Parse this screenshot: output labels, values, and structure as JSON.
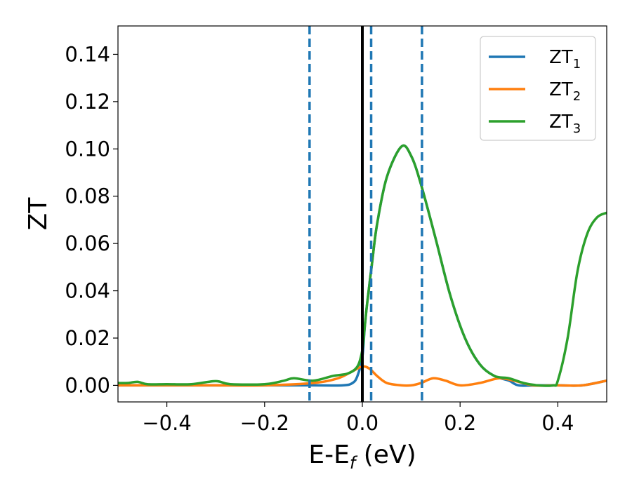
{
  "chart_data": {
    "type": "line",
    "xlabel": "E-E",
    "xlabel_sub": "f",
    "xlabel_unit": " (eV)",
    "ylabel": "ZT",
    "xlim": [
      -0.5,
      0.5
    ],
    "ylim": [
      -0.007,
      0.152
    ],
    "x_ticks": [
      -0.4,
      -0.2,
      0.0,
      0.2,
      0.4
    ],
    "x_tick_labels": [
      "−0.4",
      "−0.2",
      "0.0",
      "0.2",
      "0.4"
    ],
    "y_ticks": [
      0.0,
      0.02,
      0.04,
      0.06,
      0.08,
      0.1,
      0.12,
      0.14
    ],
    "y_tick_labels": [
      "0.00",
      "0.02",
      "0.04",
      "0.06",
      "0.08",
      "0.10",
      "0.12",
      "0.14"
    ],
    "grid": false,
    "legend_position": "top-right",
    "vertical_lines": [
      {
        "x": 0.0,
        "color": "#000000",
        "style": "solid"
      },
      {
        "x": -0.108,
        "color": "#1f77b4",
        "style": "dashed"
      },
      {
        "x": 0.018,
        "color": "#1f77b4",
        "style": "dashed"
      },
      {
        "x": 0.122,
        "color": "#1f77b4",
        "style": "dashed"
      }
    ],
    "series": [
      {
        "name": "ZT",
        "name_sub": "1",
        "color": "#1f77b4",
        "points": [
          [
            -0.5,
            0.0
          ],
          [
            -0.3,
            0.0
          ],
          [
            -0.1,
            0.0
          ],
          [
            -0.04,
            0.0
          ],
          [
            -0.02,
            0.001
          ],
          [
            -0.01,
            0.004
          ],
          [
            0.0,
            0.012
          ],
          [
            0.005,
            0.025
          ],
          [
            0.01,
            0.035
          ],
          [
            0.02,
            0.052
          ],
          [
            0.03,
            0.068
          ],
          [
            0.05,
            0.088
          ],
          [
            0.08,
            0.101
          ],
          [
            0.1,
            0.097
          ],
          [
            0.12,
            0.085
          ],
          [
            0.15,
            0.062
          ],
          [
            0.18,
            0.038
          ],
          [
            0.21,
            0.02
          ],
          [
            0.24,
            0.009
          ],
          [
            0.27,
            0.004
          ],
          [
            0.3,
            0.002
          ],
          [
            0.32,
            0.0
          ],
          [
            0.36,
            0.0
          ],
          [
            0.4,
            0.0
          ],
          [
            0.45,
            0.0
          ],
          [
            0.5,
            0.002
          ]
        ]
      },
      {
        "name": "ZT",
        "name_sub": "2",
        "color": "#ff7f0e",
        "points": [
          [
            -0.5,
            0.0
          ],
          [
            -0.4,
            0.0
          ],
          [
            -0.3,
            0.0
          ],
          [
            -0.2,
            0.0
          ],
          [
            -0.1,
            0.001
          ],
          [
            -0.05,
            0.003
          ],
          [
            -0.02,
            0.006
          ],
          [
            0.0,
            0.008
          ],
          [
            0.015,
            0.007
          ],
          [
            0.03,
            0.004
          ],
          [
            0.05,
            0.001
          ],
          [
            0.08,
            0.0
          ],
          [
            0.1,
            0.0
          ],
          [
            0.12,
            0.001
          ],
          [
            0.145,
            0.003
          ],
          [
            0.17,
            0.002
          ],
          [
            0.2,
            0.0
          ],
          [
            0.24,
            0.001
          ],
          [
            0.28,
            0.003
          ],
          [
            0.31,
            0.002
          ],
          [
            0.35,
            0.0
          ],
          [
            0.4,
            0.0
          ],
          [
            0.45,
            0.0
          ],
          [
            0.5,
            0.002
          ]
        ]
      },
      {
        "name": "ZT",
        "name_sub": "3",
        "color": "#2ca02c",
        "points": [
          [
            -0.5,
            0.001
          ],
          [
            -0.48,
            0.001
          ],
          [
            -0.46,
            0.0015
          ],
          [
            -0.44,
            0.0005
          ],
          [
            -0.4,
            0.0005
          ],
          [
            -0.35,
            0.0005
          ],
          [
            -0.3,
            0.0018
          ],
          [
            -0.27,
            0.0005
          ],
          [
            -0.2,
            0.0005
          ],
          [
            -0.16,
            0.002
          ],
          [
            -0.14,
            0.003
          ],
          [
            -0.1,
            0.002
          ],
          [
            -0.06,
            0.004
          ],
          [
            -0.03,
            0.005
          ],
          [
            -0.01,
            0.008
          ],
          [
            0.0,
            0.015
          ],
          [
            0.005,
            0.025
          ],
          [
            0.01,
            0.035
          ],
          [
            0.02,
            0.052
          ],
          [
            0.03,
            0.068
          ],
          [
            0.05,
            0.088
          ],
          [
            0.08,
            0.101
          ],
          [
            0.1,
            0.097
          ],
          [
            0.12,
            0.085
          ],
          [
            0.15,
            0.062
          ],
          [
            0.18,
            0.038
          ],
          [
            0.21,
            0.02
          ],
          [
            0.24,
            0.009
          ],
          [
            0.27,
            0.004
          ],
          [
            0.3,
            0.003
          ],
          [
            0.33,
            0.001
          ],
          [
            0.36,
            0.0
          ],
          [
            0.39,
            0.0
          ],
          [
            0.4,
            0.002
          ],
          [
            0.42,
            0.02
          ],
          [
            0.44,
            0.048
          ],
          [
            0.46,
            0.064
          ],
          [
            0.48,
            0.071
          ],
          [
            0.5,
            0.073
          ]
        ]
      }
    ]
  }
}
